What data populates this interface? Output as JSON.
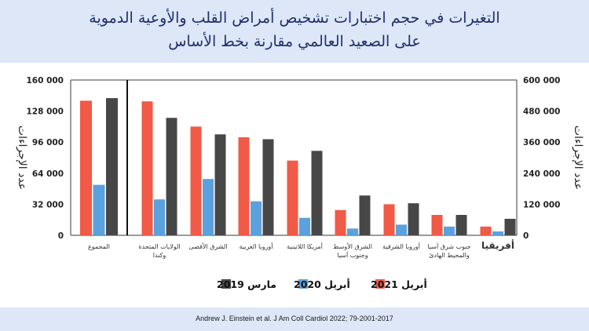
{
  "header": {
    "title_line1": "التغيرات في حجم اختبارات تشخيص أمراض القلب والأوعية الدموية",
    "title_line2": "على الصعيد العالمي مقارنة بخط الأساس"
  },
  "footer": {
    "citation": "Andrew J. Einstein et al. J Am Coll Cardiol 2022; 79-2001-2017"
  },
  "colors": {
    "march_2019": "#474747",
    "april_2020": "#5aa1dd",
    "april_2021": "#f05a46"
  },
  "chart_data": {
    "type": "bar",
    "title": "",
    "ylabel_left": "عدد الإجراءات",
    "ylabel_right": "عدد الإجراءات",
    "ylim_left": [
      0,
      160000
    ],
    "ylim_right": [
      0,
      600000
    ],
    "yticks_left": [
      "0",
      "32 000",
      "64 000",
      "96 000",
      "128 000",
      "160 000"
    ],
    "yticks_right": [
      "0",
      "120 000",
      "240 000",
      "360 000",
      "480 000",
      "600 000"
    ],
    "grid": false,
    "legend_position": "bottom",
    "categories": [
      "المجموع",
      "الولايات المتحدة وكندا",
      "الشرق الأقصى",
      "أوروبا الغربية",
      "أمريكا اللاتينية",
      "الشرق الأوسط وجنوب آسيا",
      "أوروبا الشرقية",
      "جنوب شرق آسيا والمحيط الهادئ",
      "أفريقيا"
    ],
    "category_lines": [
      [
        "المجموع"
      ],
      [
        "الولايات المتحدة",
        "وكندا"
      ],
      [
        "الشرق الأقصى"
      ],
      [
        "أوروبا الغربية"
      ],
      [
        "أمريكا اللاتينية"
      ],
      [
        "الشرق الأوسط",
        "وجنوب آسيا"
      ],
      [
        "أوروبا الشرقية"
      ],
      [
        "جنوب شرق آسيا",
        "والمحيط الهادئ"
      ],
      [
        "أفريقيا"
      ]
    ],
    "axis_note": "first category (المجموع) is plotted against the right axis; all other categories against the left axis",
    "series": [
      {
        "name": "أبريل 2021",
        "values": [
          520000,
          138000,
          112000,
          101000,
          77000,
          26000,
          32000,
          21000,
          9000
        ]
      },
      {
        "name": "أبريل 2020",
        "values": [
          195000,
          37000,
          58000,
          35000,
          18000,
          7000,
          11000,
          9000,
          4000
        ]
      },
      {
        "name": "مارس 2019",
        "values": [
          530000,
          121000,
          104000,
          99000,
          87000,
          41000,
          33000,
          21000,
          17000
        ]
      }
    ]
  }
}
